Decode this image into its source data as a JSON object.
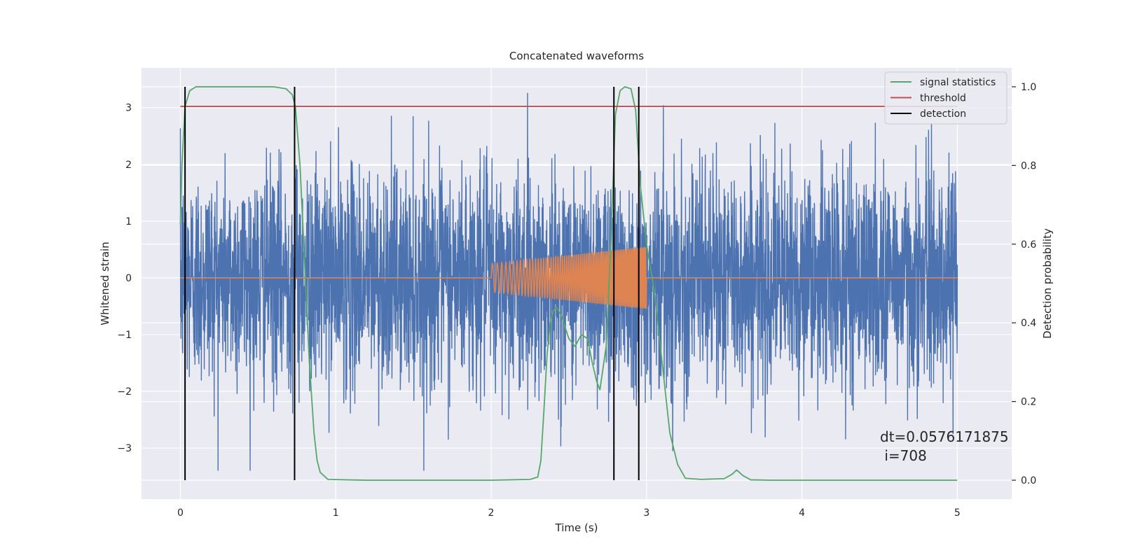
{
  "chart_data": {
    "type": "line",
    "title": "Concatenated waveforms",
    "xlabel": "Time (s)",
    "ylabel": "Whitened strain",
    "y2label": "Detection probability",
    "xlim": [
      -0.25,
      5.35
    ],
    "ylim": [
      -3.9,
      3.7
    ],
    "y2lim": [
      -0.048,
      1.048
    ],
    "x_ticks": [
      0,
      1,
      2,
      3,
      4,
      5
    ],
    "y_ticks": [
      3,
      2,
      1,
      0,
      -1,
      -2,
      -3
    ],
    "y2_ticks": [
      1.0,
      0.8,
      0.6,
      0.4,
      0.2,
      0.0
    ],
    "x_tick_labels": [
      "0",
      "1",
      "2",
      "3",
      "4",
      "5"
    ],
    "y_tick_labels": [
      "3",
      "2",
      "1",
      "0",
      "−1",
      "−2",
      "−3"
    ],
    "y2_tick_labels": [
      "1.0",
      "0.8",
      "0.6",
      "0.4",
      "0.2",
      "0.0"
    ],
    "grid": true,
    "legend_position": "top-right",
    "legend": [
      "signal statistics",
      "threshold",
      "detection"
    ],
    "annotation": [
      "dt=0.0576171875",
      " i=708"
    ],
    "series": [
      {
        "name": "whitened strain (noise)",
        "color": "#4c72b0",
        "axis": "left",
        "description_range": [
          -3.4,
          3.4
        ],
        "x_range": [
          0,
          5
        ]
      },
      {
        "name": "injected waveform",
        "color": "#dd8452",
        "axis": "left",
        "chirp_start": 2.0,
        "chirp_end": 3.0,
        "amplitude_start": 0.25,
        "amplitude_end": 0.55
      },
      {
        "name": "signal statistics",
        "color": "#55a868",
        "axis": "right",
        "x": [
          0.0,
          0.01,
          0.03,
          0.06,
          0.1,
          0.2,
          0.4,
          0.6,
          0.68,
          0.72,
          0.74,
          0.77,
          0.8,
          0.83,
          0.86,
          0.88,
          0.9,
          0.95,
          1.2,
          2.0,
          2.25,
          2.3,
          2.32,
          2.34,
          2.36,
          2.38,
          2.4,
          2.42,
          2.45,
          2.5,
          2.54,
          2.58,
          2.62,
          2.65,
          2.68,
          2.7,
          2.74,
          2.77,
          2.8,
          2.83,
          2.86,
          2.9,
          2.93,
          2.96,
          3.0,
          3.05,
          3.1,
          3.15,
          3.2,
          3.25,
          3.35,
          3.5,
          3.55,
          3.58,
          3.62,
          3.67,
          3.8,
          4.5,
          5.0
        ],
        "y": [
          0.65,
          0.8,
          0.95,
          0.99,
          1.0,
          1.0,
          1.0,
          1.0,
          0.995,
          0.98,
          0.95,
          0.8,
          0.55,
          0.3,
          0.12,
          0.05,
          0.02,
          0.002,
          0.0,
          0.0,
          0.002,
          0.008,
          0.05,
          0.18,
          0.32,
          0.4,
          0.43,
          0.44,
          0.42,
          0.36,
          0.34,
          0.37,
          0.36,
          0.3,
          0.25,
          0.23,
          0.34,
          0.6,
          0.93,
          0.99,
          1.0,
          0.995,
          0.94,
          0.75,
          0.6,
          0.48,
          0.3,
          0.12,
          0.04,
          0.005,
          0.002,
          0.004,
          0.015,
          0.026,
          0.012,
          0.001,
          0.0,
          0.0,
          0.0
        ]
      },
      {
        "name": "threshold",
        "color": "#c44e52",
        "axis": "right",
        "x": [
          0,
          5
        ],
        "y": [
          0.95,
          0.95
        ]
      },
      {
        "name": "detection",
        "color": "#000000",
        "axis": "right",
        "vlines": [
          0.03,
          0.735,
          2.79,
          2.95
        ]
      }
    ]
  }
}
